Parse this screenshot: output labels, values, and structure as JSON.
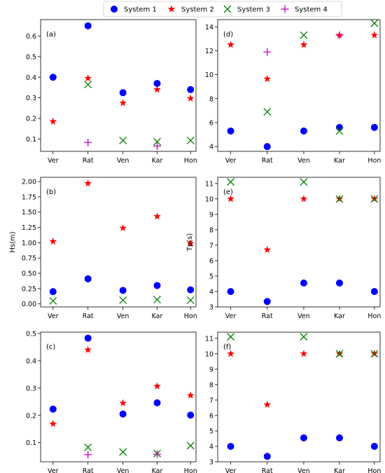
{
  "legend": [
    {
      "name": "System 1",
      "marker": "circle",
      "color": "#0000ff"
    },
    {
      "name": "System 2",
      "marker": "star",
      "color": "#ff0000"
    },
    {
      "name": "System 3",
      "marker": "x",
      "color": "#008000"
    },
    {
      "name": "System 4",
      "marker": "plus",
      "color": "#bf00bf"
    }
  ],
  "chart_data": [
    {
      "type": "scatter",
      "panel_label": "(a)",
      "ylabel": "",
      "categories": [
        "Ver",
        "Rat",
        "Ven",
        "Kar",
        "Hon"
      ],
      "ylim": [
        0.04,
        0.68
      ],
      "yticks": [
        0.1,
        0.2,
        0.3,
        0.4,
        0.5,
        0.6
      ],
      "ytick_labels": [
        "0.1",
        "0.2",
        "0.3",
        "0.4",
        "0.5",
        "0.6"
      ],
      "series": [
        {
          "name": "System 1",
          "values": [
            0.4,
            0.65,
            0.325,
            0.37,
            0.34
          ]
        },
        {
          "name": "System 2",
          "values": [
            0.185,
            0.395,
            0.275,
            0.34,
            0.297
          ]
        },
        {
          "name": "System 3",
          "values": [
            null,
            0.365,
            0.093,
            0.087,
            0.093
          ]
        },
        {
          "name": "System 4",
          "values": [
            null,
            0.083,
            null,
            0.066,
            null
          ]
        }
      ]
    },
    {
      "type": "scatter",
      "panel_label": "(d)",
      "ylabel": "",
      "categories": [
        "Ver",
        "Rat",
        "Ven",
        "Kar",
        "Hon"
      ],
      "ylim": [
        3.6,
        14.6
      ],
      "yticks": [
        4,
        6,
        8,
        10,
        12,
        14
      ],
      "ytick_labels": [
        "4",
        "6",
        "8",
        "10",
        "12",
        "14"
      ],
      "series": [
        {
          "name": "System 1",
          "values": [
            5.3,
            4.0,
            5.3,
            5.6,
            5.6
          ]
        },
        {
          "name": "System 2",
          "values": [
            12.5,
            9.65,
            12.5,
            13.3,
            13.3
          ]
        },
        {
          "name": "System 3",
          "values": [
            null,
            6.9,
            13.3,
            5.3,
            14.3
          ]
        },
        {
          "name": "System 4",
          "values": [
            null,
            11.9,
            null,
            13.3,
            null
          ]
        }
      ]
    },
    {
      "type": "scatter",
      "panel_label": "(b)",
      "ylabel": "Hs(m)",
      "categories": [
        "Ver",
        "Rat",
        "Ven",
        "Kar",
        "Hon"
      ],
      "ylim": [
        -0.05,
        2.07
      ],
      "yticks": [
        0.0,
        0.25,
        0.5,
        0.75,
        1.0,
        1.25,
        1.5,
        1.75,
        2.0
      ],
      "ytick_labels": [
        "0.00",
        "0.25",
        "0.50",
        "0.75",
        "1.00",
        "1.25",
        "1.50",
        "1.75",
        "2.00"
      ],
      "series": [
        {
          "name": "System 1",
          "values": [
            0.2,
            0.41,
            0.22,
            0.3,
            0.23
          ]
        },
        {
          "name": "System 2",
          "values": [
            1.02,
            1.97,
            1.24,
            1.43,
            0.99
          ]
        },
        {
          "name": "System 3",
          "values": [
            0.05,
            null,
            0.06,
            0.07,
            0.06
          ]
        },
        {
          "name": "System 4",
          "values": [
            null,
            null,
            null,
            null,
            null
          ]
        }
      ]
    },
    {
      "type": "scatter",
      "panel_label": "(e)",
      "ylabel": "Tp(s)",
      "categories": [
        "Ver",
        "Rat",
        "Ven",
        "Kar",
        "Hon"
      ],
      "ylim": [
        3.0,
        11.4
      ],
      "yticks": [
        3,
        4,
        5,
        6,
        7,
        8,
        9,
        10,
        11
      ],
      "ytick_labels": [
        "3",
        "4",
        "5",
        "6",
        "7",
        "8",
        "9",
        "10",
        "11"
      ],
      "series": [
        {
          "name": "System 1",
          "values": [
            4.0,
            3.35,
            4.55,
            4.55,
            4.0
          ]
        },
        {
          "name": "System 2",
          "values": [
            10.0,
            6.7,
            10.0,
            10.0,
            10.0
          ]
        },
        {
          "name": "System 3",
          "values": [
            11.1,
            null,
            11.1,
            10.0,
            10.0
          ]
        },
        {
          "name": "System 4",
          "values": [
            null,
            null,
            null,
            null,
            null
          ]
        }
      ]
    },
    {
      "type": "scatter",
      "panel_label": "(c)",
      "ylabel": "",
      "categories": [
        "Ver",
        "Rat",
        "Ven",
        "Kar",
        "Hon"
      ],
      "ylim": [
        0.03,
        0.505
      ],
      "yticks": [
        0.1,
        0.2,
        0.3,
        0.4,
        0.5
      ],
      "ytick_labels": [
        "0.1",
        "0.2",
        "0.3",
        "0.4",
        "0.5"
      ],
      "series": [
        {
          "name": "System 1",
          "values": [
            0.223,
            0.483,
            0.205,
            0.246,
            0.201
          ]
        },
        {
          "name": "System 2",
          "values": [
            0.169,
            0.44,
            0.245,
            0.307,
            0.273
          ]
        },
        {
          "name": "System 3",
          "values": [
            null,
            0.083,
            0.066,
            0.06,
            0.089
          ]
        },
        {
          "name": "System 4",
          "values": [
            null,
            0.056,
            null,
            0.058,
            null
          ]
        }
      ]
    },
    {
      "type": "scatter",
      "panel_label": "(f)",
      "ylabel": "",
      "categories": [
        "Ver",
        "Rat",
        "Ven",
        "Kar",
        "Hon"
      ],
      "ylim": [
        3.0,
        11.4
      ],
      "yticks": [
        3,
        4,
        5,
        6,
        7,
        8,
        9,
        10,
        11
      ],
      "ytick_labels": [
        "3",
        "4",
        "5",
        "6",
        "7",
        "8",
        "9",
        "10",
        "11"
      ],
      "series": [
        {
          "name": "System 1",
          "values": [
            4.0,
            3.35,
            4.55,
            4.55,
            4.0
          ]
        },
        {
          "name": "System 2",
          "values": [
            10.0,
            6.7,
            10.0,
            10.0,
            10.0
          ]
        },
        {
          "name": "System 3",
          "values": [
            11.1,
            null,
            11.1,
            10.0,
            10.0
          ]
        },
        {
          "name": "System 4",
          "values": [
            null,
            null,
            null,
            null,
            null
          ]
        }
      ]
    }
  ]
}
